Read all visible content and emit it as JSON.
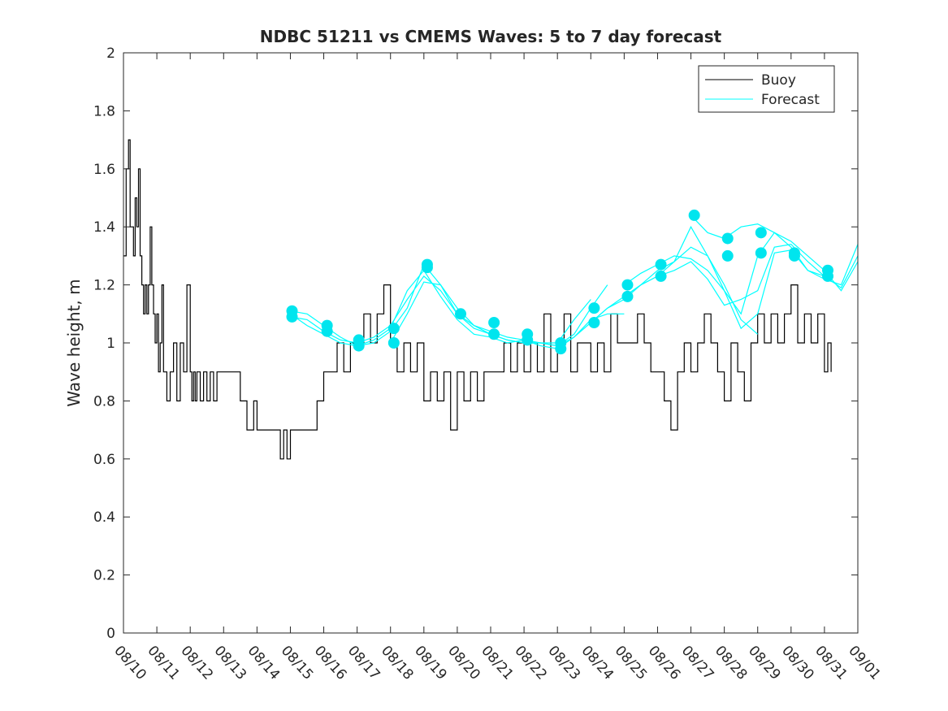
{
  "chart_data": {
    "type": "line",
    "title": "NDBC 51211 vs CMEMS Waves: 5 to 7 day forecast",
    "xlabel": "",
    "ylabel": "Wave height, m",
    "xlim": [
      0,
      22
    ],
    "ylim": [
      0,
      2
    ],
    "y_ticks": [
      0,
      0.2,
      0.4,
      0.6,
      0.8,
      1,
      1.2,
      1.4,
      1.6,
      1.8,
      2
    ],
    "y_tick_labels": [
      "0",
      "0.2",
      "0.4",
      "0.6",
      "0.8",
      "1",
      "1.2",
      "1.4",
      "1.6",
      "1.8",
      "2"
    ],
    "x_ticks": [
      0,
      1,
      2,
      3,
      4,
      5,
      6,
      7,
      8,
      9,
      10,
      11,
      12,
      13,
      14,
      15,
      16,
      17,
      18,
      19,
      20,
      21,
      22
    ],
    "x_tick_labels": [
      "08/10",
      "08/11",
      "08/12",
      "08/13",
      "08/14",
      "08/15",
      "08/16",
      "08/17",
      "08/18",
      "08/19",
      "08/20",
      "08/21",
      "08/22",
      "08/23",
      "08/24",
      "08/25",
      "08/26",
      "08/27",
      "08/28",
      "08/29",
      "08/30",
      "08/31",
      "09/01"
    ],
    "x_unit": "days since 08/10 00:00",
    "legend": {
      "position": "top-right",
      "entries": [
        "Buoy",
        "Forecast"
      ]
    },
    "colors": {
      "Buoy": "#000000",
      "Forecast": "#00ffff",
      "marker": "#00e5ee",
      "axis": "#262626"
    },
    "series": [
      {
        "name": "Buoy",
        "x": [
          0,
          0.08,
          0.15,
          0.2,
          0.25,
          0.3,
          0.35,
          0.4,
          0.45,
          0.5,
          0.55,
          0.6,
          0.65,
          0.7,
          0.75,
          0.8,
          0.85,
          0.9,
          0.95,
          1.0,
          1.05,
          1.1,
          1.15,
          1.2,
          1.3,
          1.4,
          1.5,
          1.6,
          1.7,
          1.8,
          1.9,
          2.0,
          2.05,
          2.1,
          2.15,
          2.2,
          2.3,
          2.4,
          2.5,
          2.6,
          2.7,
          2.8,
          2.9,
          3.0,
          3.2,
          3.5,
          3.7,
          3.9,
          4.0,
          4.1,
          4.2,
          4.3,
          4.5,
          4.7,
          4.8,
          4.9,
          5.0,
          5.2,
          5.5,
          5.8,
          5.9,
          6.0,
          6.2,
          6.4,
          6.6,
          6.8,
          7.0,
          7.2,
          7.4,
          7.6,
          7.8,
          8.0,
          8.2,
          8.4,
          8.6,
          8.8,
          9.0,
          9.2,
          9.4,
          9.6,
          9.8,
          10.0,
          10.2,
          10.4,
          10.6,
          10.8,
          11.0,
          11.2,
          11.4,
          11.6,
          11.8,
          12.0,
          12.2,
          12.4,
          12.6,
          12.8,
          13.0,
          13.2,
          13.4,
          13.6,
          13.8,
          14.0,
          14.2,
          14.4,
          14.6,
          14.8,
          15.0,
          15.2,
          15.4,
          15.6,
          15.8,
          16.0,
          16.2,
          16.4,
          16.6,
          16.8,
          17.0,
          17.2,
          17.4,
          17.6,
          17.8,
          18.0,
          18.2,
          18.4,
          18.6,
          18.8,
          19.0,
          19.2,
          19.4,
          19.6,
          19.8,
          20.0,
          20.2,
          20.4,
          20.6,
          20.8,
          21.0,
          21.1,
          21.2
        ],
        "values": [
          1.3,
          1.6,
          1.7,
          1.4,
          1.4,
          1.3,
          1.5,
          1.4,
          1.6,
          1.3,
          1.2,
          1.1,
          1.2,
          1.1,
          1.2,
          1.4,
          1.2,
          1.1,
          1.0,
          1.1,
          0.9,
          1.0,
          1.2,
          0.9,
          0.8,
          0.9,
          1.0,
          0.8,
          1.0,
          0.9,
          1.2,
          0.9,
          0.8,
          0.9,
          0.8,
          0.9,
          0.8,
          0.9,
          0.8,
          0.9,
          0.8,
          0.9,
          0.9,
          0.9,
          0.9,
          0.8,
          0.7,
          0.8,
          0.7,
          0.7,
          0.7,
          0.7,
          0.7,
          0.6,
          0.7,
          0.6,
          0.7,
          0.7,
          0.7,
          0.8,
          0.8,
          0.9,
          0.9,
          1.0,
          0.9,
          1.0,
          1.0,
          1.1,
          1.0,
          1.1,
          1.2,
          1.0,
          0.9,
          1.0,
          0.9,
          1.0,
          0.8,
          0.9,
          0.8,
          0.9,
          0.7,
          0.9,
          0.8,
          0.9,
          0.8,
          0.9,
          0.9,
          0.9,
          1.0,
          0.9,
          1.0,
          0.9,
          1.0,
          0.9,
          1.1,
          0.9,
          1.0,
          1.1,
          0.9,
          1.0,
          1.0,
          0.9,
          1.0,
          0.9,
          1.1,
          1.0,
          1.0,
          1.0,
          1.1,
          1.0,
          0.9,
          0.9,
          0.8,
          0.7,
          0.9,
          1.0,
          0.9,
          1.0,
          1.1,
          1.0,
          0.9,
          0.8,
          1.0,
          0.9,
          0.8,
          1.0,
          1.1,
          1.0,
          1.1,
          1.0,
          1.1,
          1.2,
          1.0,
          1.1,
          1.0,
          1.1,
          0.9,
          1.0,
          0.9
        ]
      },
      {
        "name": "Forecast",
        "x": [
          5.0,
          5.5,
          6.0,
          6.5,
          7.0,
          7.5,
          8.0,
          8.5,
          9.0,
          9.5,
          10.0,
          10.5,
          11.0,
          11.5,
          12.0,
          12.5,
          13.0,
          13.5,
          14.0
        ],
        "values": [
          1.09,
          1.08,
          1.04,
          1.01,
          1.0,
          1.02,
          1.06,
          1.15,
          1.23,
          1.18,
          1.1,
          1.05,
          1.03,
          1.01,
          1.0,
          1.0,
          1.0,
          1.08,
          1.15
        ]
      },
      {
        "name": "Forecast",
        "x": [
          5.0,
          5.5,
          6.0,
          6.5,
          7.0,
          7.5,
          8.0,
          8.5,
          9.0,
          9.5,
          10.0,
          10.5,
          11.0,
          11.5,
          12.0,
          12.5,
          13.0,
          13.5,
          14.0,
          14.5
        ],
        "values": [
          1.11,
          1.1,
          1.06,
          1.02,
          0.99,
          1.0,
          1.04,
          1.12,
          1.27,
          1.2,
          1.1,
          1.06,
          1.04,
          1.02,
          1.01,
          1.0,
          0.99,
          1.03,
          1.12,
          1.2
        ]
      },
      {
        "name": "Forecast",
        "x": [
          5.0,
          5.5,
          6.0,
          6.5,
          7.0,
          7.5,
          8.0,
          8.5,
          9.0,
          9.5,
          10.0,
          10.5,
          11.0,
          11.5,
          12.0,
          12.5,
          13.0,
          13.5,
          14.0,
          14.5,
          15.0
        ],
        "values": [
          1.1,
          1.06,
          1.03,
          1.0,
          0.99,
          1.01,
          1.05,
          1.18,
          1.25,
          1.16,
          1.08,
          1.03,
          1.02,
          1.0,
          1.01,
          0.99,
          0.98,
          1.02,
          1.08,
          1.1,
          1.1
        ]
      },
      {
        "name": "Forecast",
        "x": [
          8.0,
          8.5,
          9.0,
          9.5,
          10.0,
          10.5,
          11.0,
          11.5,
          12.0,
          12.5,
          13.0,
          13.5,
          14.0,
          14.5,
          15.0,
          15.5,
          16.0,
          16.5,
          17.0,
          17.5,
          18.0,
          18.5,
          19.0
        ],
        "values": [
          1.0,
          1.1,
          1.21,
          1.2,
          1.12,
          1.06,
          1.03,
          1.01,
          1.0,
          1.0,
          0.99,
          1.02,
          1.07,
          1.12,
          1.15,
          1.2,
          1.25,
          1.28,
          1.4,
          1.3,
          1.2,
          1.08,
          1.03
        ]
      },
      {
        "name": "Forecast",
        "x": [
          14.0,
          14.5,
          15.0,
          15.5,
          16.0,
          16.5,
          17.0,
          17.5,
          18.0,
          18.5,
          19.0,
          19.5,
          20.0,
          20.5,
          21.0,
          21.5,
          22.0
        ],
        "values": [
          1.07,
          1.12,
          1.16,
          1.2,
          1.23,
          1.28,
          1.33,
          1.3,
          1.18,
          1.05,
          1.1,
          1.31,
          1.32,
          1.25,
          1.22,
          1.2,
          1.34
        ]
      },
      {
        "name": "Forecast",
        "x": [
          15.0,
          15.5,
          16.0,
          16.5,
          17.0,
          17.5,
          18.0,
          18.5,
          19.0,
          19.5,
          20.0,
          20.5,
          21.0,
          21.5,
          22.0
        ],
        "values": [
          1.2,
          1.24,
          1.27,
          1.3,
          1.29,
          1.25,
          1.18,
          1.1,
          1.3,
          1.38,
          1.35,
          1.3,
          1.25,
          1.18,
          1.28
        ]
      },
      {
        "name": "Forecast",
        "x": [
          15.0,
          15.5,
          16.0,
          16.5,
          17.0,
          17.5,
          18.0,
          18.5,
          19.0,
          19.5,
          20.0,
          20.5,
          21.0,
          21.5,
          22.0
        ],
        "values": [
          1.16,
          1.2,
          1.23,
          1.25,
          1.28,
          1.22,
          1.13,
          1.15,
          1.18,
          1.33,
          1.34,
          1.28,
          1.23,
          1.19,
          1.3
        ]
      },
      {
        "name": "Forecast",
        "x": [
          17.0,
          17.5,
          18.0,
          18.5,
          19.0,
          19.5,
          20.0,
          20.5,
          21.0
        ],
        "values": [
          1.44,
          1.38,
          1.36,
          1.4,
          1.41,
          1.38,
          1.33,
          1.25,
          1.23
        ]
      }
    ],
    "forecast_markers": {
      "x": [
        5.05,
        5.05,
        6.1,
        6.1,
        7.05,
        7.05,
        8.1,
        8.1,
        9.1,
        9.1,
        10.1,
        11.1,
        11.1,
        12.1,
        12.1,
        13.1,
        13.1,
        14.1,
        14.1,
        15.1,
        15.1,
        16.1,
        16.1,
        17.1,
        18.1,
        18.1,
        19.1,
        19.1,
        20.1,
        20.1,
        21.1,
        21.1
      ],
      "values": [
        1.11,
        1.09,
        1.06,
        1.04,
        1.01,
        0.99,
        1.05,
        1.0,
        1.27,
        1.26,
        1.1,
        1.07,
        1.03,
        1.03,
        1.01,
        1.0,
        0.98,
        1.12,
        1.07,
        1.2,
        1.16,
        1.27,
        1.23,
        1.44,
        1.36,
        1.3,
        1.38,
        1.31,
        1.31,
        1.3,
        1.25,
        1.23
      ]
    }
  }
}
